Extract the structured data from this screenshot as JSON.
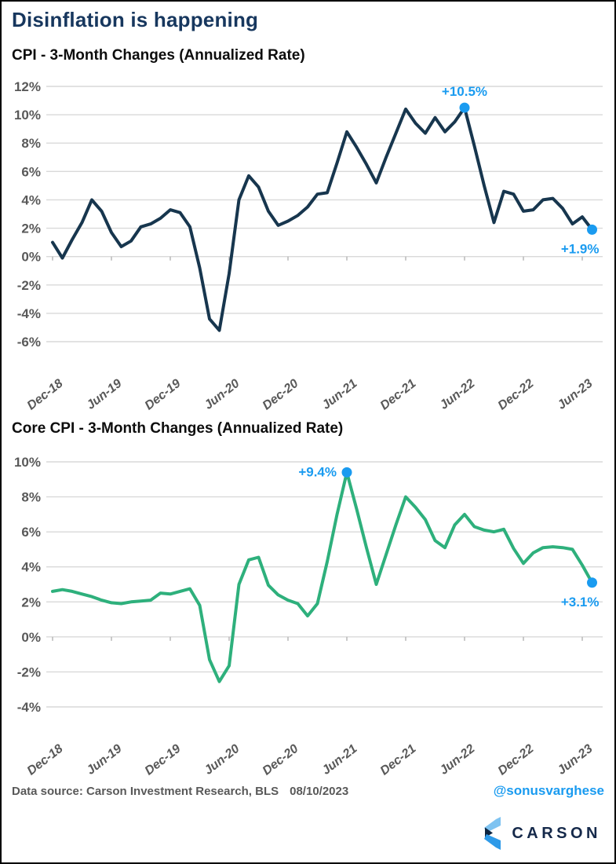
{
  "header": {
    "title": "Disinflation is happening"
  },
  "chart_data": [
    {
      "type": "line",
      "title": "CPI - 3-Month Changes (Annualized Rate)",
      "x_start": "Dec-18",
      "x_interval": "monthly",
      "x_tick_labels": [
        "Dec-18",
        "Jun-19",
        "Dec-19",
        "Jun-20",
        "Dec-20",
        "Jun-21",
        "Dec-21",
        "Jun-22",
        "Dec-22",
        "Jun-23"
      ],
      "values": [
        1.0,
        -0.1,
        1.2,
        2.4,
        4.0,
        3.2,
        1.7,
        0.7,
        1.1,
        2.1,
        2.3,
        2.7,
        3.3,
        3.1,
        2.1,
        -0.8,
        -4.4,
        -5.2,
        -1.2,
        4.0,
        5.7,
        4.9,
        3.2,
        2.2,
        2.5,
        2.9,
        3.5,
        4.4,
        4.5,
        6.6,
        8.8,
        7.7,
        6.5,
        5.2,
        7.0,
        8.7,
        10.4,
        9.4,
        8.7,
        9.8,
        8.8,
        9.5,
        10.5,
        7.8,
        5.0,
        2.4,
        4.6,
        4.4,
        3.2,
        3.3,
        4.0,
        4.1,
        3.4,
        2.3,
        2.8,
        1.9
      ],
      "ylim": [
        -6,
        12
      ],
      "ytick_step": 2,
      "ytick_suffix": "%",
      "grid": true,
      "line_color": "#17364e",
      "marker_color": "#1a9bf0",
      "annotations": [
        {
          "index": 42,
          "label": "+10.5%",
          "placement": "above"
        },
        {
          "index": 55,
          "label": "+1.9%",
          "placement": "below"
        }
      ]
    },
    {
      "type": "line",
      "title": "Core CPI - 3-Month Changes (Annualized Rate)",
      "x_start": "Dec-18",
      "x_interval": "monthly",
      "x_tick_labels": [
        "Dec-18",
        "Jun-19",
        "Dec-19",
        "Jun-20",
        "Dec-20",
        "Jun-21",
        "Dec-21",
        "Jun-22",
        "Dec-22",
        "Jun-23"
      ],
      "values": [
        2.6,
        2.7,
        2.6,
        2.45,
        2.3,
        2.1,
        1.95,
        1.9,
        2.0,
        2.05,
        2.1,
        2.5,
        2.45,
        2.6,
        2.75,
        1.8,
        -1.3,
        -2.55,
        -1.65,
        3.0,
        4.4,
        4.55,
        2.95,
        2.4,
        2.1,
        1.9,
        1.2,
        1.9,
        4.3,
        7.0,
        9.4,
        7.3,
        5.1,
        3.0,
        4.7,
        6.4,
        8.0,
        7.4,
        6.7,
        5.5,
        5.1,
        6.4,
        7.0,
        6.3,
        6.1,
        6.0,
        6.15,
        5.05,
        4.2,
        4.8,
        5.1,
        5.15,
        5.1,
        5.0,
        4.1,
        3.1
      ],
      "ylim": [
        -4,
        10
      ],
      "ytick_step": 2,
      "ytick_suffix": "%",
      "grid": true,
      "line_color": "#2eb07c",
      "marker_color": "#1a9bf0",
      "annotations": [
        {
          "index": 30,
          "label": "+9.4%",
          "placement": "left"
        },
        {
          "index": 55,
          "label": "+3.1%",
          "placement": "below"
        }
      ]
    }
  ],
  "style": {
    "title_navy": "#17375e",
    "axis_gray": "#595959",
    "gridline_gray": "#d9d9d9",
    "annotation_blue": "#1a9bf0",
    "carson_navy": "#15294a",
    "logo_light_blue": "#7ec3f1",
    "logo_mid_blue": "#2e9ae8",
    "logo_dark_navy": "#0d2440"
  },
  "footer": {
    "source_label": "Data source: Carson Investment Research, BLS",
    "date": "08/10/2023",
    "handle": "@sonusvarghese",
    "brand": "CARSON"
  }
}
